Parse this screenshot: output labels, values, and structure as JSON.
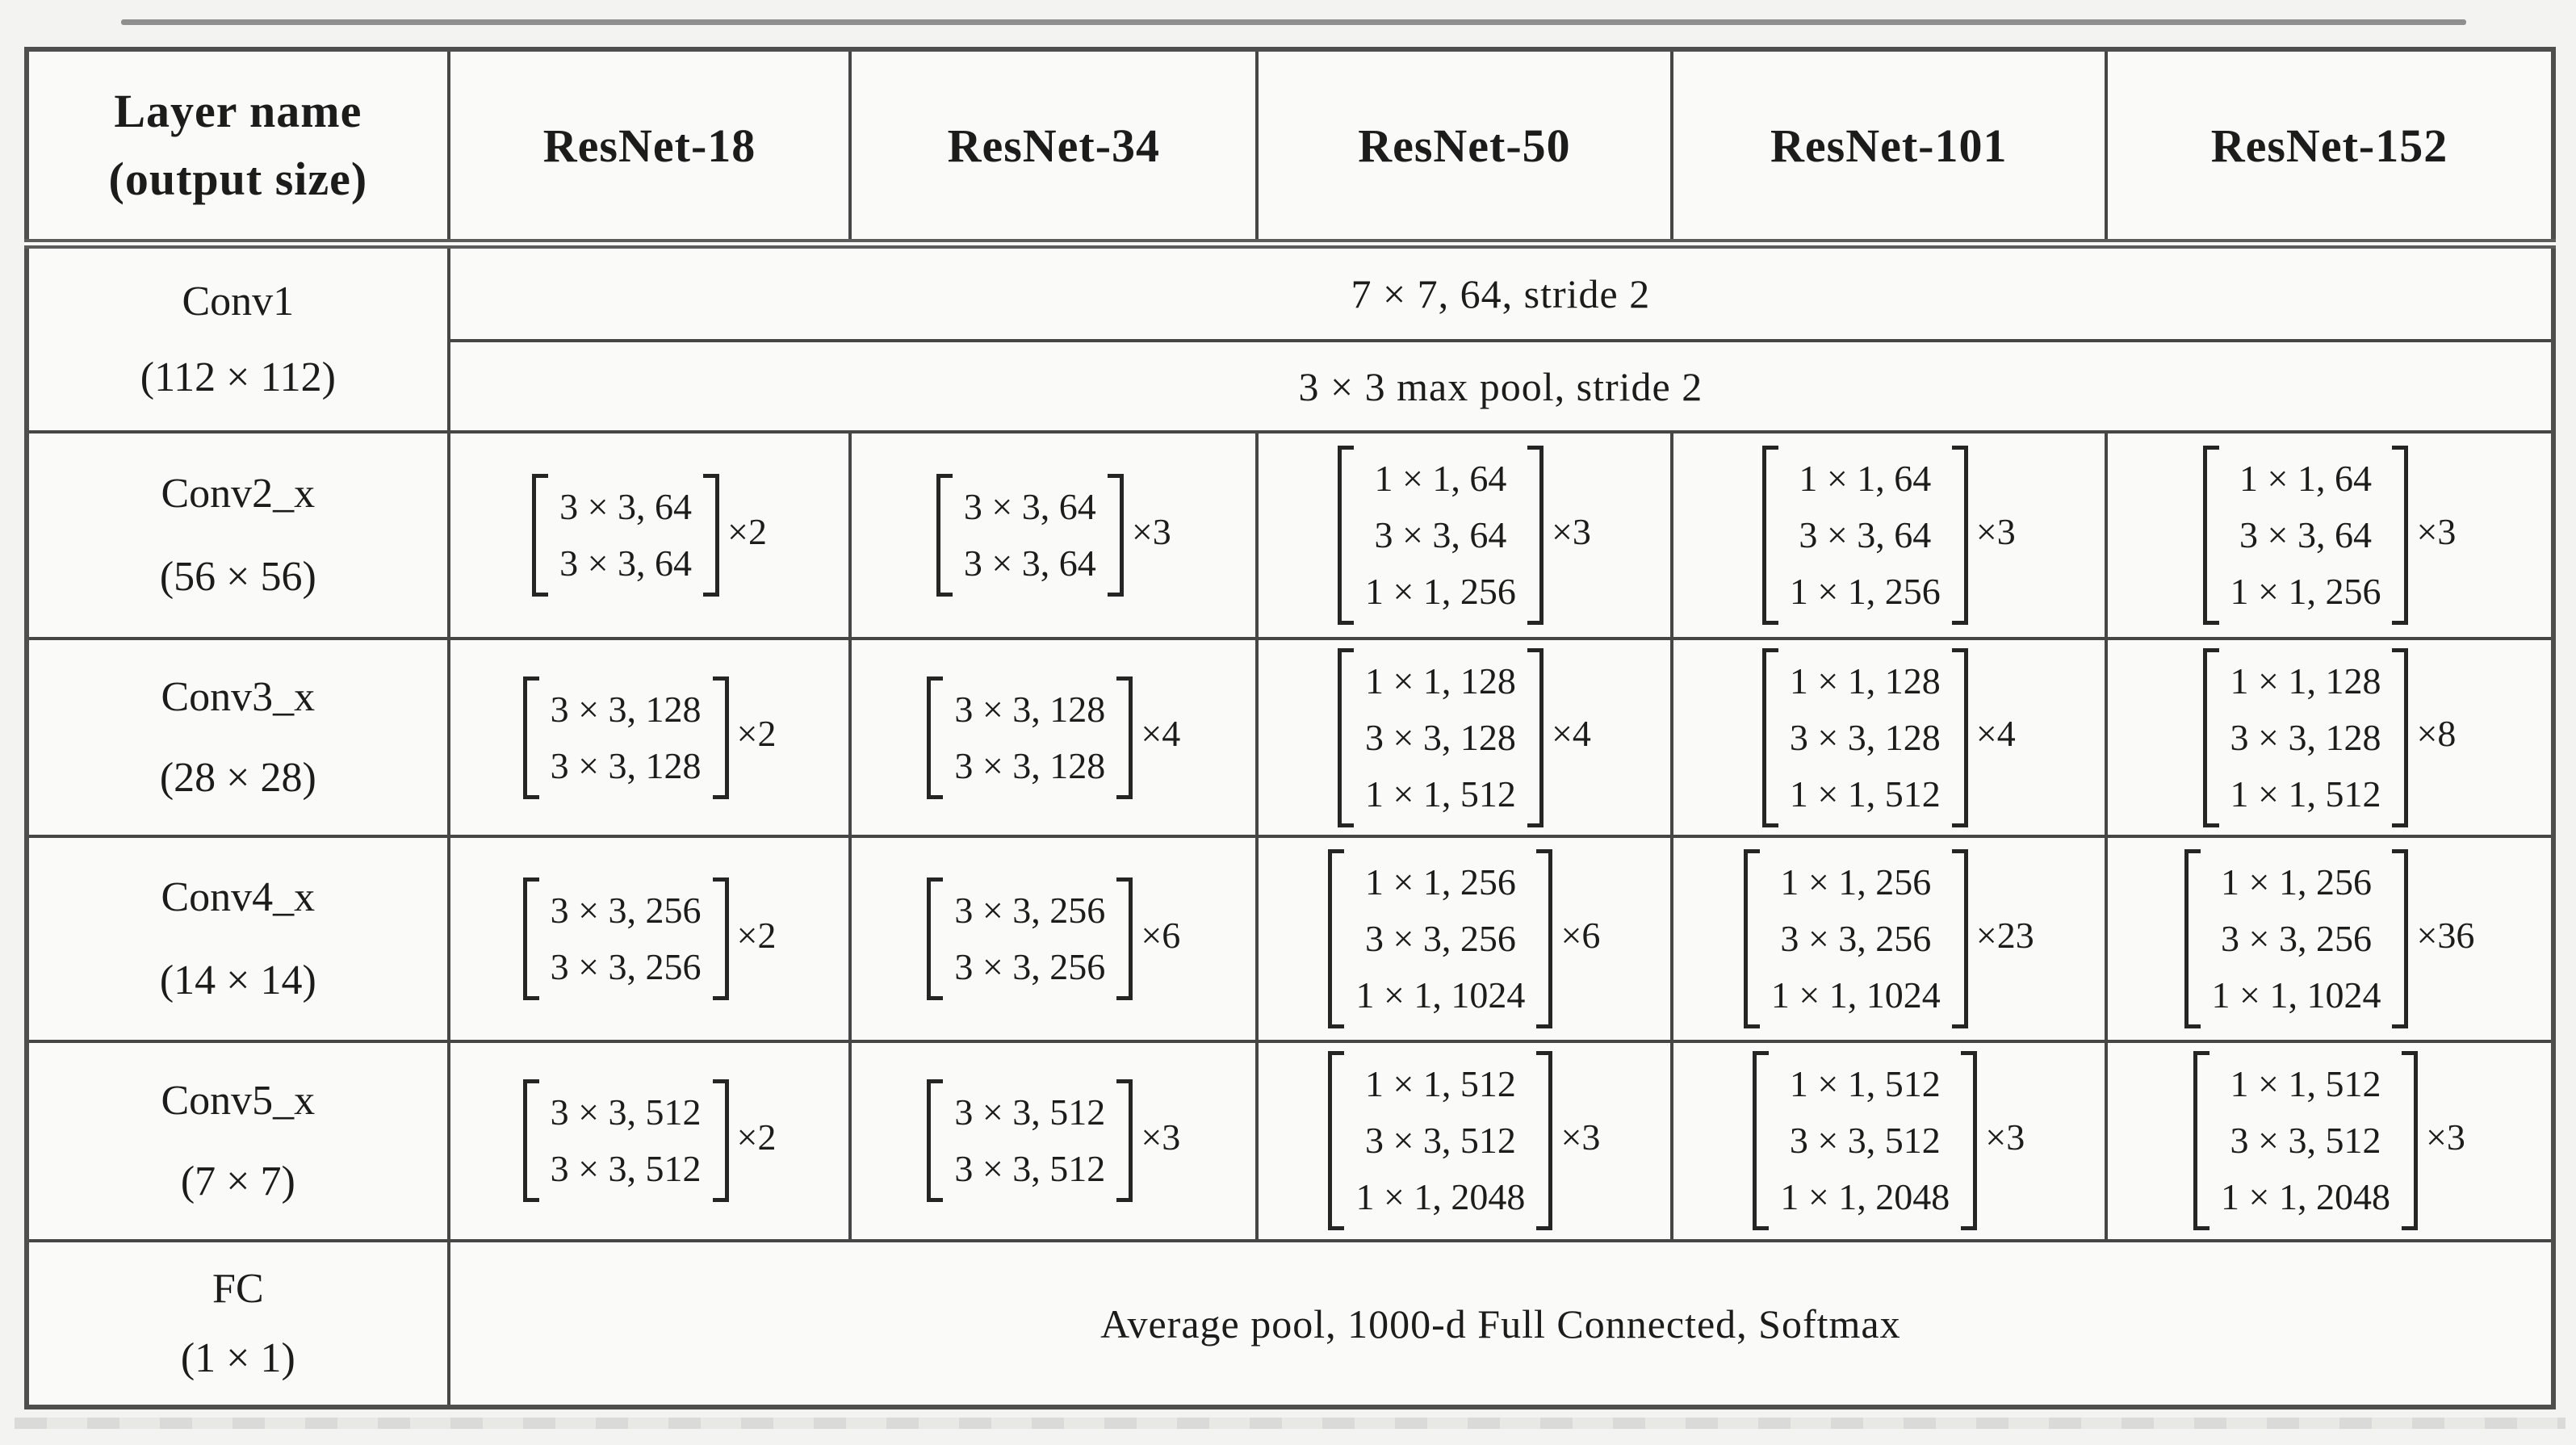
{
  "header": {
    "layer_line1": "Layer name",
    "layer_line2": "(output size)",
    "columns": [
      "ResNet-18",
      "ResNet-34",
      "ResNet-50",
      "ResNet-101",
      "ResNet-152"
    ]
  },
  "conv1": {
    "name": "Conv1",
    "output_size": "(112 × 112)",
    "row1": "7 × 7, 64, stride 2",
    "row2": "3 × 3 max pool, stride 2"
  },
  "conv_rows": [
    {
      "name": "Conv2_x",
      "output_size": "(56 × 56)",
      "cells": [
        {
          "lines": [
            "3 × 3, 64",
            "3 × 3, 64"
          ],
          "repeat": "×2"
        },
        {
          "lines": [
            "3 × 3, 64",
            "3 × 3, 64"
          ],
          "repeat": "×3"
        },
        {
          "lines": [
            "1 × 1, 64",
            "3 × 3, 64",
            "1 × 1, 256"
          ],
          "repeat": "×3"
        },
        {
          "lines": [
            "1 × 1, 64",
            "3 × 3, 64",
            "1 × 1, 256"
          ],
          "repeat": "×3"
        },
        {
          "lines": [
            "1 × 1, 64",
            "3 × 3, 64",
            "1 × 1, 256"
          ],
          "repeat": "×3"
        }
      ]
    },
    {
      "name": "Conv3_x",
      "output_size": "(28 × 28)",
      "cells": [
        {
          "lines": [
            "3 × 3, 128",
            "3 × 3, 128"
          ],
          "repeat": "×2"
        },
        {
          "lines": [
            "3 × 3, 128",
            "3 × 3, 128"
          ],
          "repeat": "×4"
        },
        {
          "lines": [
            "1 × 1, 128",
            "3 × 3, 128",
            "1 × 1, 512"
          ],
          "repeat": "×4"
        },
        {
          "lines": [
            "1 × 1, 128",
            "3 × 3, 128",
            "1 × 1, 512"
          ],
          "repeat": "×4"
        },
        {
          "lines": [
            "1 × 1, 128",
            "3 × 3, 128",
            "1 × 1, 512"
          ],
          "repeat": "×8"
        }
      ]
    },
    {
      "name": "Conv4_x",
      "output_size": "(14 × 14)",
      "cells": [
        {
          "lines": [
            "3 × 3, 256",
            "3 × 3, 256"
          ],
          "repeat": "×2"
        },
        {
          "lines": [
            "3 × 3, 256",
            "3 × 3, 256"
          ],
          "repeat": "×6"
        },
        {
          "lines": [
            "1 × 1, 256",
            "3 × 3, 256",
            "1 × 1, 1024"
          ],
          "repeat": "×6"
        },
        {
          "lines": [
            "1 × 1, 256",
            "3 × 3, 256",
            "1 × 1, 1024"
          ],
          "repeat": "×23"
        },
        {
          "lines": [
            "1 × 1, 256",
            "3 × 3, 256",
            "1 × 1, 1024"
          ],
          "repeat": "×36"
        }
      ]
    },
    {
      "name": "Conv5_x",
      "output_size": "(7 × 7)",
      "cells": [
        {
          "lines": [
            "3 × 3, 512",
            "3 × 3, 512"
          ],
          "repeat": "×2"
        },
        {
          "lines": [
            "3 × 3, 512",
            "3 × 3, 512"
          ],
          "repeat": "×3"
        },
        {
          "lines": [
            "1 × 1, 512",
            "3 × 3, 512",
            "1 × 1, 2048"
          ],
          "repeat": "×3"
        },
        {
          "lines": [
            "1 × 1, 512",
            "3 × 3, 512",
            "1 × 1, 2048"
          ],
          "repeat": "×3"
        },
        {
          "lines": [
            "1 × 1, 512",
            "3 × 3, 512",
            "1 × 1, 2048"
          ],
          "repeat": "×3"
        }
      ]
    }
  ],
  "fc": {
    "name": "FC",
    "output_size": "(1 × 1)",
    "text": "Average pool, 1000-d Full Connected, Softmax"
  }
}
